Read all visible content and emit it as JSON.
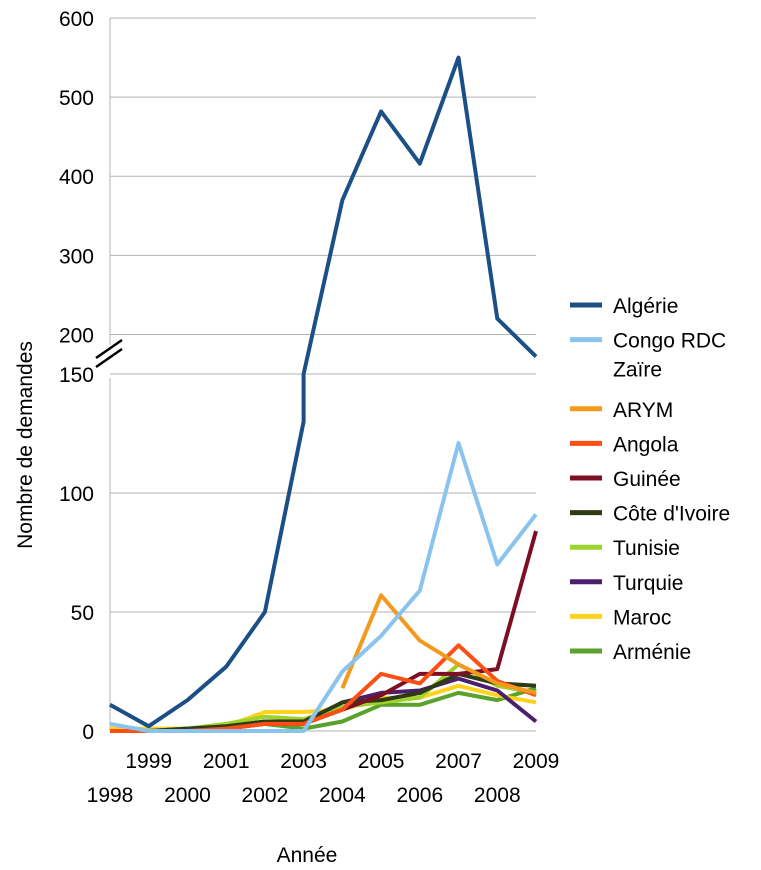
{
  "chart_data": {
    "type": "line",
    "title": "",
    "xlabel": "Année",
    "ylabel": "Nombre de demandes",
    "x": [
      1998,
      1999,
      2000,
      2001,
      2002,
      2003,
      2004,
      2005,
      2006,
      2007,
      2008,
      2009
    ],
    "x_tick_labels_upper": [
      "1999",
      "2001",
      "2003",
      "2005",
      "2007",
      "2009"
    ],
    "x_tick_labels_lower": [
      "1998",
      "2000",
      "2002",
      "2004",
      "2006",
      "2008"
    ],
    "y_axis_broken": true,
    "y_lower_range": [
      0,
      150
    ],
    "y_upper_range": [
      150,
      600
    ],
    "y_tick_labels_lower": [
      "0",
      "50",
      "100",
      "150"
    ],
    "y_tick_labels_upper": [
      "200",
      "300",
      "400",
      "500",
      "600"
    ],
    "grid": "horizontal",
    "legend_position": "right",
    "series": [
      {
        "name": "Algérie",
        "color": "#1c4f86",
        "values": [
          11,
          2,
          13,
          27,
          50,
          150,
          370,
          482,
          416,
          550,
          220,
          172
        ],
        "extra": {
          "2003": 130
        }
      },
      {
        "name": "Congo RDC Zaïre",
        "color": "#8ac4ee",
        "values": [
          3,
          0,
          0,
          0,
          0,
          0,
          25,
          40,
          59,
          121,
          70,
          91
        ]
      },
      {
        "name": "ARYM",
        "color": "#f39a1c",
        "values": [
          null,
          null,
          null,
          null,
          null,
          null,
          18,
          57,
          38,
          28,
          20,
          16
        ]
      },
      {
        "name": "Angola",
        "color": "#fb4f14",
        "values": [
          0,
          0,
          0,
          1,
          3,
          3,
          9,
          24,
          20,
          36,
          21,
          15
        ]
      },
      {
        "name": "Guinée",
        "color": "#7d0f23",
        "values": [
          0,
          0,
          0,
          1,
          3,
          3,
          9,
          15,
          24,
          24,
          26,
          84
        ]
      },
      {
        "name": "Côte d'Ivoire",
        "color": "#2e3b14",
        "values": [
          0,
          0,
          1,
          2,
          4,
          4,
          12,
          13,
          16,
          24,
          20,
          19
        ]
      },
      {
        "name": "Tunisie",
        "color": "#a0d22c",
        "values": [
          0,
          0,
          1,
          3,
          6,
          5,
          10,
          12,
          14,
          28,
          19,
          16
        ]
      },
      {
        "name": "Turquie",
        "color": "#4b1f6e",
        "values": [
          0,
          0,
          1,
          1,
          4,
          3,
          12,
          16,
          17,
          22,
          17,
          4
        ]
      },
      {
        "name": "Maroc",
        "color": "#ffd21c",
        "values": [
          1,
          1,
          1,
          2,
          8,
          8,
          9,
          14,
          14,
          19,
          15,
          12
        ]
      },
      {
        "name": "Arménie",
        "color": "#59a22c",
        "values": [
          0,
          0,
          1,
          2,
          3,
          1,
          4,
          11,
          11,
          16,
          13,
          18
        ]
      }
    ]
  }
}
